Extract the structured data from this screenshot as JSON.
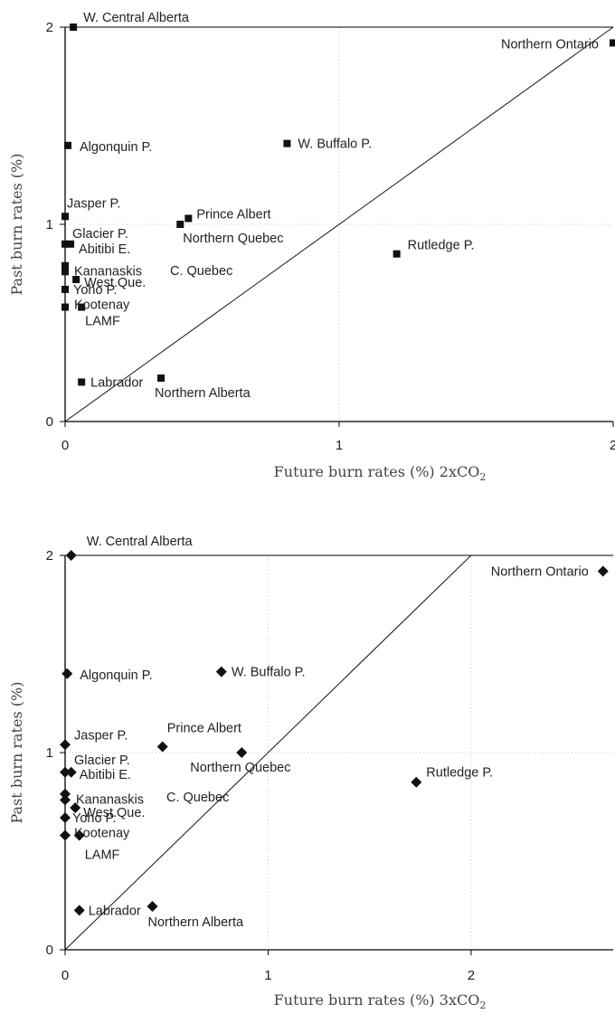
{
  "chart_data": [
    {
      "type": "scatter",
      "marker": "square",
      "xlabel": "Future burn rates (%) 2xCO",
      "xlabel_sub": "2",
      "ylabel": "Past burn rates (%)",
      "xlim": [
        0,
        2
      ],
      "ylim": [
        0,
        2
      ],
      "xticks": [
        "0",
        "1",
        "2"
      ],
      "yticks": [
        "0",
        "1",
        "2"
      ],
      "grid": "dotted",
      "reference_line": "y = x",
      "points": [
        {
          "label": "W. Central Alberta",
          "x": 0.03,
          "y": 2.0
        },
        {
          "label": "Northern Ontario",
          "x": 2.0,
          "y": 1.92
        },
        {
          "label": "Algonquin P.",
          "x": 0.01,
          "y": 1.4
        },
        {
          "label": "W. Buffalo P.",
          "x": 0.81,
          "y": 1.41
        },
        {
          "label": "Jasper P.",
          "x": 0.0,
          "y": 1.04
        },
        {
          "label": "Prince Albert",
          "x": 0.45,
          "y": 1.03
        },
        {
          "label": "Northern Quebec",
          "x": 0.42,
          "y": 1.0
        },
        {
          "label": "Glacier P.",
          "x": 0.0,
          "y": 0.9
        },
        {
          "label": "Abitibi E.",
          "x": 0.02,
          "y": 0.9
        },
        {
          "label": "Rutledge P.",
          "x": 1.21,
          "y": 0.85
        },
        {
          "label": "C. Quebec",
          "x": 0.0,
          "y": 0.79
        },
        {
          "label": "Kananaskis",
          "x": 0.0,
          "y": 0.76
        },
        {
          "label": "West.Que.",
          "x": 0.04,
          "y": 0.72
        },
        {
          "label": "Yoho P.",
          "x": 0.0,
          "y": 0.67
        },
        {
          "label": "LAMF",
          "x": 0.06,
          "y": 0.58
        },
        {
          "label": "Kootenay",
          "x": 0.0,
          "y": 0.58
        },
        {
          "label": "Northern Alberta",
          "x": 0.35,
          "y": 0.22
        },
        {
          "label": "Labrador",
          "x": 0.06,
          "y": 0.2
        }
      ]
    },
    {
      "type": "scatter",
      "marker": "diamond",
      "xlabel": "Future burn rates (%) 3xCO",
      "xlabel_sub": "2",
      "ylabel": "Past burn rates (%)",
      "xlim": [
        0,
        2.7
      ],
      "ylim": [
        0,
        2
      ],
      "xticks": [
        "0",
        "1",
        "2"
      ],
      "yticks": [
        "0",
        "1",
        "2"
      ],
      "grid": "dotted",
      "reference_line": "y = x",
      "points": [
        {
          "label": "W. Central Alberta",
          "x": 0.03,
          "y": 2.0
        },
        {
          "label": "Northern Ontario",
          "x": 2.65,
          "y": 1.92
        },
        {
          "label": "Algonquin P.",
          "x": 0.01,
          "y": 1.4
        },
        {
          "label": "W. Buffalo P.",
          "x": 0.77,
          "y": 1.41
        },
        {
          "label": "Jasper P.",
          "x": 0.0,
          "y": 1.04
        },
        {
          "label": "Prince Albert",
          "x": 0.48,
          "y": 1.03
        },
        {
          "label": "Northern Quebec",
          "x": 0.87,
          "y": 1.0
        },
        {
          "label": "Glacier P.",
          "x": 0.0,
          "y": 0.9
        },
        {
          "label": "Abitibi E.",
          "x": 0.03,
          "y": 0.9
        },
        {
          "label": "Rutledge P.",
          "x": 1.73,
          "y": 0.85
        },
        {
          "label": "C. Quebec",
          "x": 0.0,
          "y": 0.79
        },
        {
          "label": "Kananaskis",
          "x": 0.0,
          "y": 0.76
        },
        {
          "label": "West.Que.",
          "x": 0.05,
          "y": 0.72
        },
        {
          "label": "Yoho P.",
          "x": 0.0,
          "y": 0.67
        },
        {
          "label": "LAMF",
          "x": 0.07,
          "y": 0.58
        },
        {
          "label": "Kootenay",
          "x": 0.0,
          "y": 0.58
        },
        {
          "label": "Northern Alberta",
          "x": 0.43,
          "y": 0.22
        },
        {
          "label": "Labrador",
          "x": 0.07,
          "y": 0.2
        }
      ]
    }
  ]
}
